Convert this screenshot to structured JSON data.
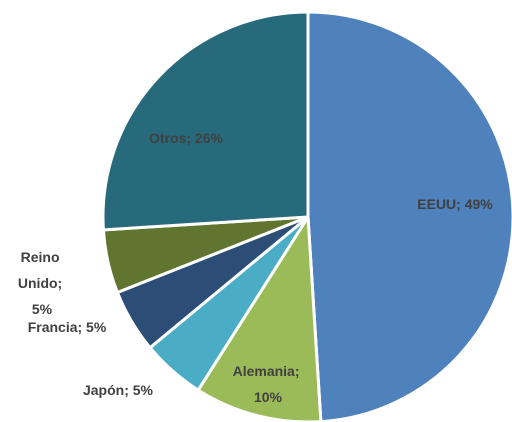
{
  "chart_data": {
    "type": "pie",
    "values": [
      49,
      10,
      5,
      5,
      5,
      26
    ],
    "value_labels": [
      "EEUU; 49%",
      "Alemania; 10%",
      "Japón; 5%",
      "Francia; 5%",
      "Reino Unido; 5%",
      "Otros; 26%"
    ],
    "colors": [
      "#4f81bd",
      "#9bbb59",
      "#4bacc6",
      "#2c4d75",
      "#5f7530",
      "#276a7c"
    ]
  }
}
